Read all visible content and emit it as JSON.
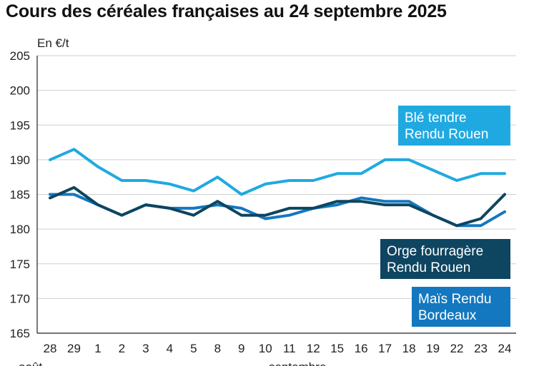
{
  "title": "Cours des céréales françaises au 24 septembre 2025",
  "chart_data": {
    "type": "line",
    "ylabel": "En €/t",
    "ylim": [
      165,
      205
    ],
    "yticks": [
      165,
      170,
      175,
      180,
      185,
      190,
      195,
      200,
      205
    ],
    "categories": [
      "28",
      "29",
      "1",
      "2",
      "3",
      "4",
      "5",
      "8",
      "9",
      "10",
      "11",
      "12",
      "15",
      "16",
      "17",
      "18",
      "19",
      "22",
      "23",
      "24"
    ],
    "months": [
      {
        "label": "août",
        "index": 0
      },
      {
        "label": "septembre",
        "index": 10
      }
    ],
    "grid": "horizontal",
    "series": [
      {
        "name_lines": [
          "Blé tendre",
          "Rendu Rouen"
        ],
        "color": "#20a9e1",
        "values": [
          190,
          191.5,
          189,
          187,
          187,
          186.5,
          185.5,
          187.5,
          185,
          186.5,
          187,
          187,
          188,
          188,
          190,
          190,
          188.5,
          187,
          188,
          188
        ]
      },
      {
        "name_lines": [
          "Maïs Rendu",
          "Bordeaux"
        ],
        "color": "#1378bf",
        "values": [
          185,
          185,
          183.5,
          182,
          183.5,
          183,
          183,
          183.5,
          183,
          181.5,
          182,
          183,
          183.5,
          184.5,
          184,
          184,
          182,
          180.5,
          180.5,
          182.5
        ]
      },
      {
        "name_lines": [
          "Orge fourragère",
          "Rendu Rouen"
        ],
        "color": "#0e4560",
        "values": [
          184.5,
          186,
          183.5,
          182,
          183.5,
          183,
          182,
          184,
          182,
          182,
          183,
          183,
          184,
          184,
          183.5,
          183.5,
          182,
          180.5,
          181.5,
          185
        ]
      }
    ]
  }
}
